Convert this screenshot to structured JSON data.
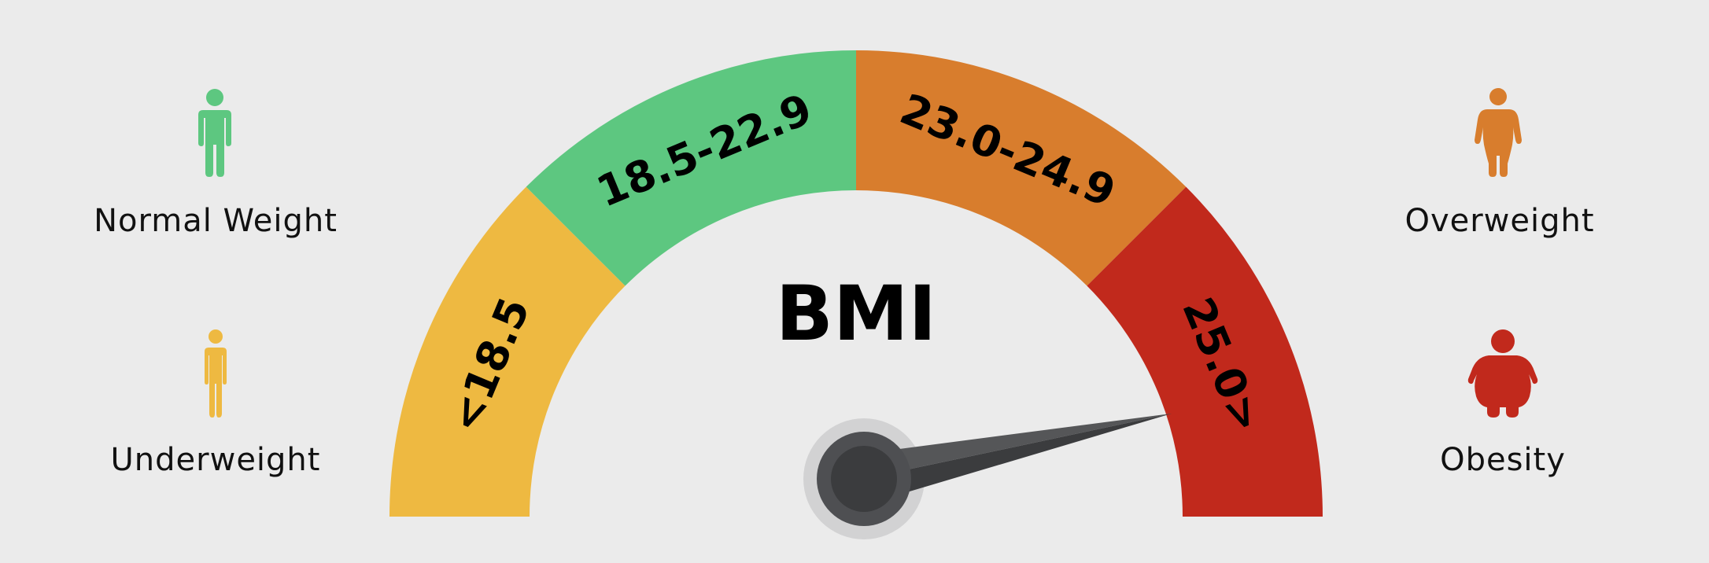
{
  "title": "BMI",
  "colors": {
    "background": "#ebebeb",
    "underweight": "#eeb941",
    "normal": "#5dc780",
    "overweight": "#d87d2d",
    "obesity": "#c1291c",
    "needle_dark": "#3b3c3e",
    "needle_light": "#555658"
  },
  "gauge": {
    "segments": [
      {
        "label": "<18.5",
        "category": "underweight",
        "color": "#eeb941",
        "start_deg": 180,
        "end_deg": 135
      },
      {
        "label": "18.5-22.9",
        "category": "normal",
        "color": "#5dc780",
        "start_deg": 135,
        "end_deg": 90
      },
      {
        "label": "23.0-24.9",
        "category": "overweight",
        "color": "#d87d2d",
        "start_deg": 90,
        "end_deg": 45
      },
      {
        "label": "25.0>",
        "category": "obesity",
        "color": "#c1291c",
        "start_deg": 45,
        "end_deg": 0
      }
    ],
    "needle_deg": 12
  },
  "legend": {
    "normal": {
      "label": "Normal Weight",
      "icon": "person-normal-icon",
      "color": "#5dc780"
    },
    "underweight": {
      "label": "Underweight",
      "icon": "person-thin-icon",
      "color": "#eeb941"
    },
    "overweight": {
      "label": "Overweight",
      "icon": "person-overweight-icon",
      "color": "#d87d2d"
    },
    "obesity": {
      "label": "Obesity",
      "icon": "person-obese-icon",
      "color": "#c1291c"
    }
  }
}
